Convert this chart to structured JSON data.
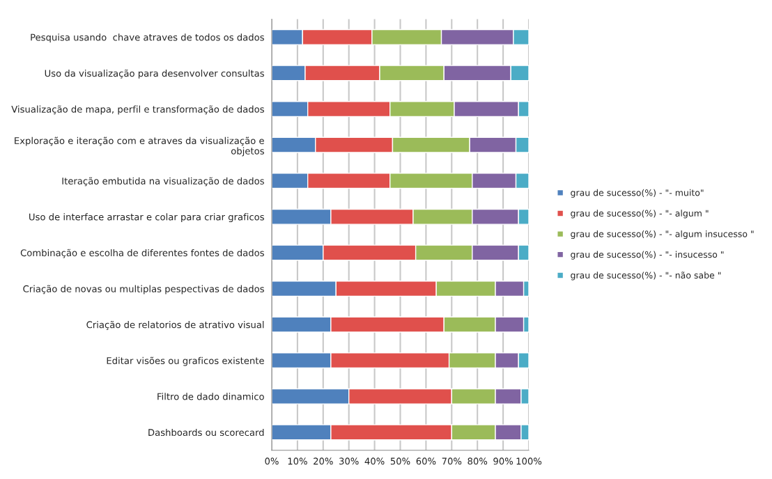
{
  "chart_data": {
    "type": "bar",
    "orientation": "horizontal",
    "stacked": true,
    "categories": [
      "Pesquisa usando  chave atraves de todos os dados",
      "Uso da visualização para desenvolver consultas",
      "Visualização de mapa, perfil e transformação de dados",
      "Exploração e iteração com e atraves da visualização e objetos",
      "Iteração embutida na visualização de dados",
      "Uso de interface arrastar e colar para criar graficos",
      "Combinação e escolha de diferentes fontes de dados",
      "Criação de novas ou multiplas pespectivas de dados",
      "Criação de relatorios de atrativo visual",
      "Editar visões ou graficos existente",
      "Filtro de dado dinamico",
      "Dashboards ou scorecard"
    ],
    "series": [
      {
        "name": "grau de sucesso(%) - \"- muito\"",
        "color": "#4f81bd",
        "values": [
          12,
          13,
          14,
          17,
          14,
          23,
          20,
          25,
          23,
          23,
          30,
          23
        ]
      },
      {
        "name": "grau de sucesso(%) - \"- algum \"",
        "color": "#e0504c",
        "values": [
          27,
          29,
          32,
          30,
          32,
          32,
          36,
          39,
          44,
          46,
          40,
          47
        ]
      },
      {
        "name": "grau de sucesso(%) - \"- algum insucesso \"",
        "color": "#9bbb59",
        "values": [
          27,
          25,
          25,
          30,
          32,
          23,
          22,
          23,
          20,
          18,
          17,
          17
        ]
      },
      {
        "name": "grau de sucesso(%) - \"- insucesso \"",
        "color": "#8064a2",
        "values": [
          28,
          26,
          25,
          18,
          17,
          18,
          18,
          11,
          11,
          9,
          10,
          10
        ]
      },
      {
        "name": "grau de sucesso(%) - \"- não sabe \"",
        "color": "#4bacc6",
        "values": [
          6,
          7,
          4,
          5,
          5,
          4,
          4,
          2,
          2,
          4,
          3,
          3
        ]
      }
    ],
    "xlim": [
      0,
      100
    ],
    "xticks": [
      {
        "value": 0,
        "label": "0%"
      },
      {
        "value": 10,
        "label": "10%"
      },
      {
        "value": 20,
        "label": "20%"
      },
      {
        "value": 30,
        "label": "30%"
      },
      {
        "value": 40,
        "label": "40%"
      },
      {
        "value": 50,
        "label": "50%"
      },
      {
        "value": 60,
        "label": "60%"
      },
      {
        "value": 70,
        "label": "70%"
      },
      {
        "value": 80,
        "label": "80%"
      },
      {
        "value": 90,
        "label": "90%"
      },
      {
        "value": 100,
        "label": "100%"
      }
    ],
    "grid": "x",
    "legend": "right"
  }
}
